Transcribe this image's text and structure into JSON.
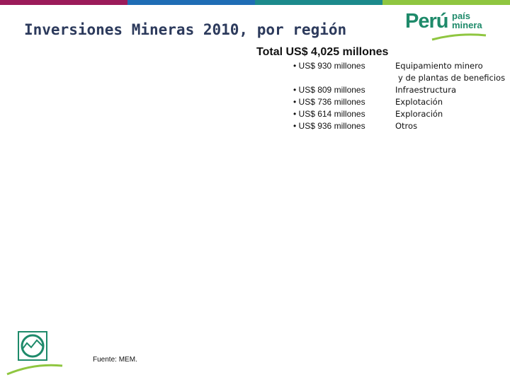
{
  "colors": {
    "bar": [
      "#9b1b5a",
      "#1f6db5",
      "#1c8a8c",
      "#8fc640"
    ],
    "title": "#2c3a5c",
    "brand": "#1e8a6a",
    "accent": "#8fc640"
  },
  "header": {
    "title": "Inversiones Mineras 2010, por región",
    "logo_main": "Perú",
    "logo_sub_1": "país",
    "logo_sub_2": "minera"
  },
  "summary": {
    "total": "Total US$ 4,025 millones"
  },
  "investments": [
    {
      "amount": "• US$ 930 millones",
      "category": "Equipamiento minero",
      "category_line2": "y de plantas de beneficios"
    },
    {
      "amount": "• US$ 809 millones",
      "category": "Infraestructura"
    },
    {
      "amount": "• US$ 736 millones",
      "category": "Explotación"
    },
    {
      "amount": "• US$ 614 millones",
      "category": "Exploración"
    },
    {
      "amount": "• US$ 936 millones",
      "category": "Otros"
    }
  ],
  "footer": {
    "source": "Fuente: MEM.",
    "emblem_icon": "mining-emblem-icon"
  }
}
